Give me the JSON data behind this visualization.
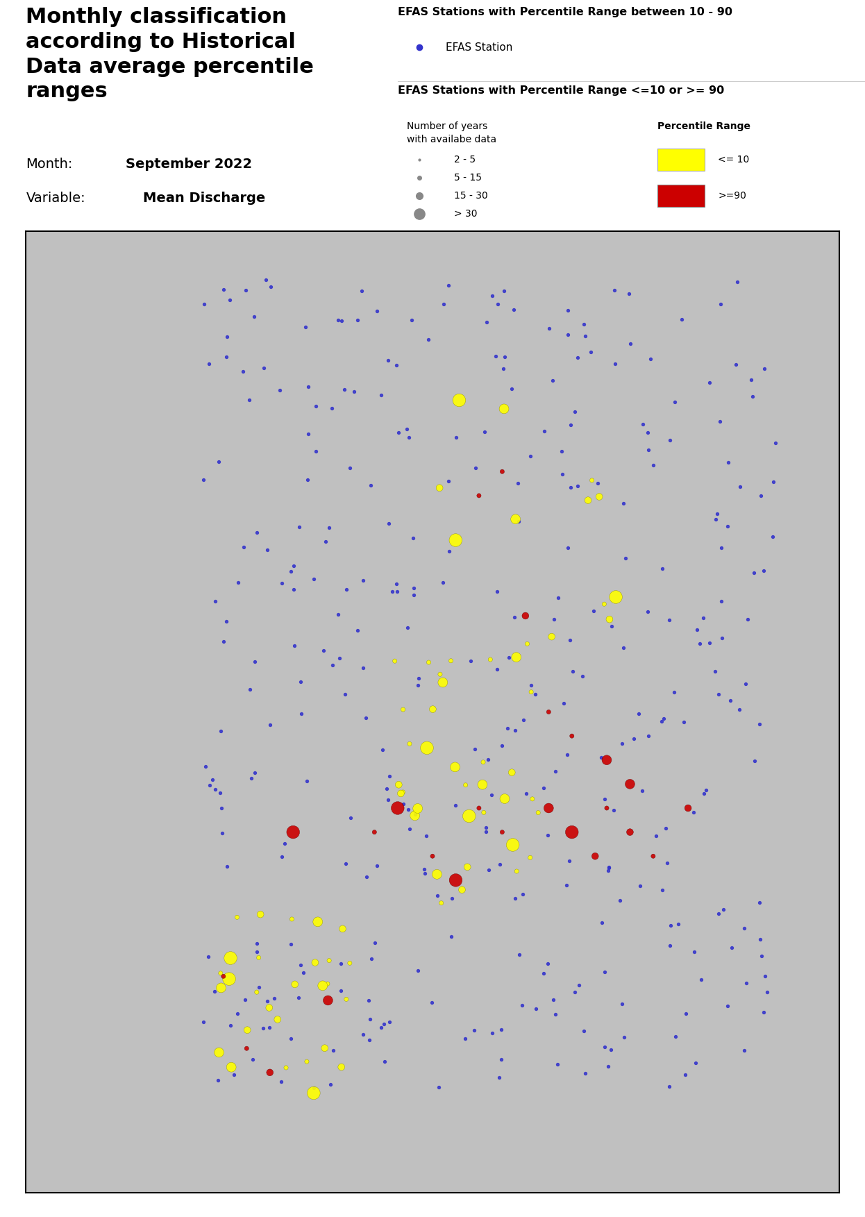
{
  "title_left": "Monthly classification\naccording to Historical\nData average percentile\nranges",
  "month_label": "Month:",
  "month_value": "September 2022",
  "variable_label": "Variable:",
  "variable_value": "Mean Discharge",
  "legend1_title": "EFAS Stations with Percentile Range between 10 - 90",
  "legend1_item": "EFAS Station",
  "legend1_color": "#3333CC",
  "legend2_title": "EFAS Stations with Percentile Range <=10 or >= 90",
  "size_legend_title": "Number of years\nwith availabe data",
  "size_items": [
    "2 - 5",
    "5 - 15",
    "15 - 30",
    "> 30"
  ],
  "percentile_legend_title": "Percentile Range",
  "percentile_items": [
    "<= 10",
    ">=90"
  ],
  "percentile_colors": [
    "#FFFF00",
    "#CC0000"
  ],
  "map_extent": [
    -25,
    45,
    32,
    72
  ],
  "background_color": "#FFFFFF",
  "map_border_color": "#000000"
}
